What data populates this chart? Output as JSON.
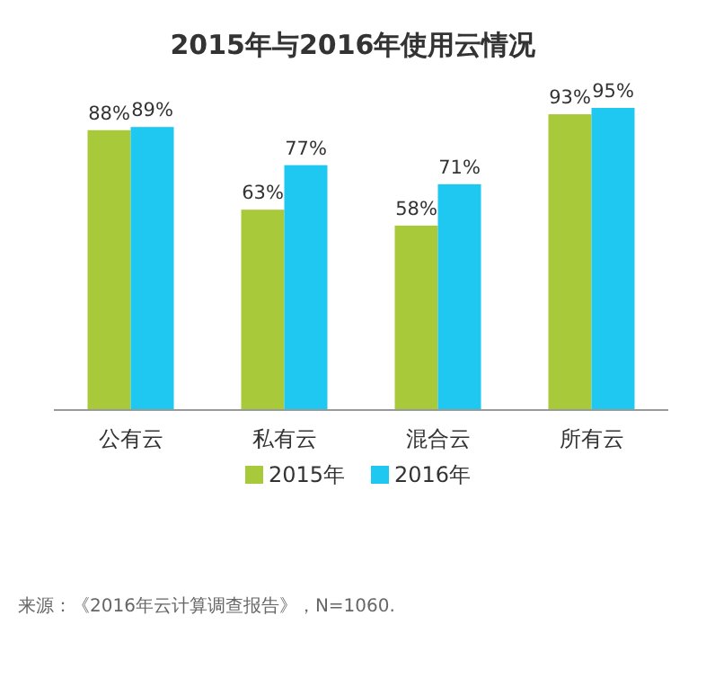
{
  "chart_data": {
    "type": "bar",
    "title": "2015年与2016年使用云情况",
    "categories": [
      "公有云",
      "私有云",
      "混合云",
      "所有云"
    ],
    "series": [
      {
        "name": "2015年",
        "color": "#a8c93a",
        "values": [
          88,
          63,
          58,
          93
        ],
        "value_labels": [
          "88%",
          "63%",
          "58%",
          "93%"
        ]
      },
      {
        "name": "2016年",
        "color": "#1fc8f0",
        "values": [
          89,
          77,
          71,
          95
        ],
        "value_labels": [
          "89%",
          "77%",
          "71%",
          "95%"
        ]
      }
    ],
    "legend": "bottom",
    "annotations": [
      "来源：《2016年云计算调查报告》，N=1060."
    ]
  }
}
